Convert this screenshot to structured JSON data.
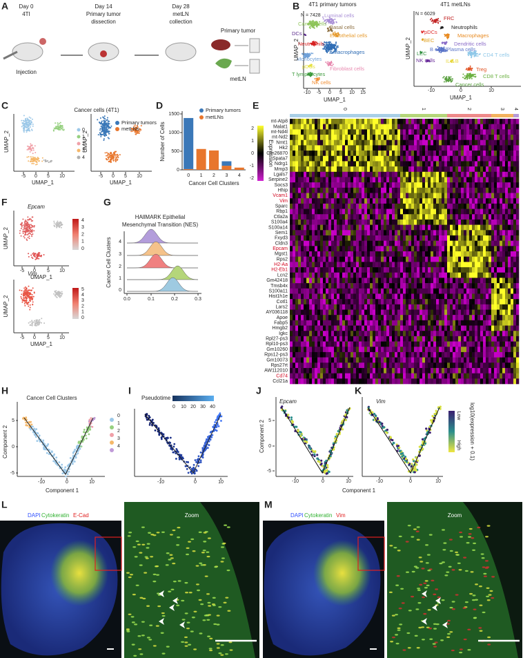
{
  "panel_a": {
    "label": "A",
    "steps": [
      {
        "day": "Day 0",
        "line1": "4TI",
        "line2": "Injection"
      },
      {
        "day": "Day 14",
        "line1": "Primary tumor",
        "line2": "dissection"
      },
      {
        "day": "Day 28",
        "line1": "metLN",
        "line2": "collection"
      }
    ],
    "tumor_label": "Primary tumor",
    "metln_label": "metLN"
  },
  "panel_b": {
    "label": "B",
    "left": {
      "title": "4T1 primary tumors",
      "n": "N = 7428",
      "x_label": "UMAP_1",
      "y_label": "UMAP_2",
      "xticks": [
        -10,
        -5,
        0,
        5,
        10,
        15
      ],
      "cells": [
        {
          "name": "Luminal cells",
          "color": "#a98fd6"
        },
        {
          "name": "Basal cells",
          "color": "#8b6d3e"
        },
        {
          "name": "Cancer cells",
          "color": "#8fc45a"
        },
        {
          "name": "Endothelial cells",
          "color": "#e69b2e"
        },
        {
          "name": "DCs",
          "color": "#5b2c8c"
        },
        {
          "name": "Neutrophils",
          "color": "#d62020"
        },
        {
          "name": "Macrophages",
          "color": "#2f6db5"
        },
        {
          "name": "Monocytes",
          "color": "#6fa0d8"
        },
        {
          "name": "pDCs",
          "color": "#e5e040"
        },
        {
          "name": "Fibroblast cells",
          "color": "#e88ab0"
        },
        {
          "name": "T lymphocytes",
          "color": "#3d9a3d"
        },
        {
          "name": "NK cells",
          "color": "#f08c30"
        }
      ]
    },
    "right": {
      "title": "4T1 metLNs",
      "n": "N = 6029",
      "x_label": "UMAP_1",
      "y_label": "UMAP_2",
      "xticks": [
        -10,
        0,
        10
      ],
      "cells": [
        {
          "name": "FRC",
          "color": "#c02020"
        },
        {
          "name": "Neutrophils",
          "color": "#222222"
        },
        {
          "name": "pDCs",
          "color": "#e03030"
        },
        {
          "name": "Macrophages",
          "color": "#e88a20"
        },
        {
          "name": "BEC",
          "color": "#e0a020"
        },
        {
          "name": "Dendritic cells",
          "color": "#8a6cc8"
        },
        {
          "name": "B cells/Plasma cells",
          "color": "#5a74c8"
        },
        {
          "name": "LEC",
          "color": "#2f8f3f"
        },
        {
          "name": "CD4 T cells",
          "color": "#8fc8e8"
        },
        {
          "name": "NK cells",
          "color": "#6a2d9a"
        },
        {
          "name": "ILC B",
          "color": "#e8d840"
        },
        {
          "name": "Treg",
          "color": "#e05020"
        },
        {
          "name": "CD8 T cells",
          "color": "#6ab040"
        },
        {
          "name": "Cancer cells",
          "color": "#5aa040"
        }
      ]
    }
  },
  "panel_c": {
    "label": "C",
    "title": "Cancer cells (4T1)",
    "x_label": "UMAP_1",
    "y_label": "UMAP_2",
    "x_label_2": "UMAP_1",
    "y_label_2": "UMAP_2",
    "xticks": [
      -5,
      0,
      5,
      10
    ],
    "xticks_2": [
      -5,
      0,
      5,
      10
    ],
    "clusters": [
      {
        "name": "0",
        "color": "#9cc8e8"
      },
      {
        "name": "1",
        "color": "#96d080"
      },
      {
        "name": "2",
        "color": "#f0a0a8"
      },
      {
        "name": "3",
        "color": "#f5b86a"
      },
      {
        "name": "4",
        "color": "#b0b0b0"
      }
    ],
    "groups": [
      {
        "name": "Primary tumors",
        "color": "#3b78b8"
      },
      {
        "name": "metLNs",
        "color": "#e8762d"
      }
    ]
  },
  "panel_d": {
    "label": "D",
    "chart_data": {
      "type": "bar",
      "y_label": "Number of Cells",
      "x_label": "Cancer Cell Clusters",
      "categories": [
        "0",
        "1",
        "2",
        "3",
        "4"
      ],
      "ylim": [
        0,
        1500
      ],
      "yticks": [
        0,
        500,
        1000,
        1500
      ],
      "stacked": true,
      "series": [
        {
          "name": "metLNs",
          "color": "#e8762d",
          "values": [
            20,
            560,
            520,
            110,
            60
          ]
        },
        {
          "name": "Primary tumors",
          "color": "#3b78b8",
          "values": [
            1370,
            0,
            0,
            120,
            0
          ]
        }
      ]
    }
  },
  "panel_e": {
    "label": "E",
    "legend_title": "Expression",
    "colorbar_ticks": [
      2,
      1,
      0,
      -1,
      -2
    ],
    "clusters": [
      {
        "name": "0",
        "color": "#a9cfe6"
      },
      {
        "name": "1",
        "color": "#b5d67a"
      },
      {
        "name": "2",
        "color": "#ee8a8a"
      },
      {
        "name": "3",
        "color": "#f3b35e"
      },
      {
        "name": "4",
        "color": "#b79ad8"
      }
    ],
    "genes": [
      {
        "name": "mt-Atp8"
      },
      {
        "name": "Malat1"
      },
      {
        "name": "mt-Nd4l"
      },
      {
        "name": "mt-Nd2"
      },
      {
        "name": "Nmt1"
      },
      {
        "name": "Hk2"
      },
      {
        "name": "Gm26870"
      },
      {
        "name": "Spata7"
      },
      {
        "name": "Ndrg1"
      },
      {
        "name": "Mmp3"
      },
      {
        "name": "Lgals7"
      },
      {
        "name": "Serpine2"
      },
      {
        "name": "Socs3"
      },
      {
        "name": "Hhip"
      },
      {
        "name": "Vcam1",
        "color": "#d0021b"
      },
      {
        "name": "Vim",
        "color": "#d0021b"
      },
      {
        "name": "Sparc"
      },
      {
        "name": "Rbp1"
      },
      {
        "name": "Ctla2a"
      },
      {
        "name": "S100a4"
      },
      {
        "name": "S100a14"
      },
      {
        "name": "Sem1"
      },
      {
        "name": "Fxyd3"
      },
      {
        "name": "Cldn3"
      },
      {
        "name": "Epcam",
        "color": "#d0021b"
      },
      {
        "name": "Mgst1"
      },
      {
        "name": "Rps2"
      },
      {
        "name": "H2-Aa",
        "color": "#d0021b"
      },
      {
        "name": "H2-Eb1",
        "color": "#d0021b"
      },
      {
        "name": "Lcn2"
      },
      {
        "name": "Gm42418"
      },
      {
        "name": "Tmsb4x"
      },
      {
        "name": "S100a11"
      },
      {
        "name": "Hist1h1e"
      },
      {
        "name": "Cotl1"
      },
      {
        "name": "Lars2"
      },
      {
        "name": "AY036118"
      },
      {
        "name": "Apoe"
      },
      {
        "name": "Fabp5"
      },
      {
        "name": "Hmgb2"
      },
      {
        "name": "Igkc"
      },
      {
        "name": "Rpl27-ps3"
      },
      {
        "name": "Rpl10-ps3"
      },
      {
        "name": "Gm10260"
      },
      {
        "name": "Rps12-ps3"
      },
      {
        "name": "Gm10073"
      },
      {
        "name": "Rps27rt"
      },
      {
        "name": "AW112010"
      },
      {
        "name": "Cd74",
        "color": "#d0021b"
      },
      {
        "name": "Ccl21a"
      }
    ]
  },
  "panel_f": {
    "label": "F",
    "plots": [
      {
        "gene": "Epcam",
        "x_label": "UMAP_1",
        "y_label": "UMAP_2",
        "xticks": [
          -5,
          0,
          5,
          10
        ],
        "colorbar_ticks": [
          4,
          3,
          2,
          1,
          0
        ]
      },
      {
        "gene": "Vim",
        "x_label": "UMAP_1",
        "y_label": "UMAP_2",
        "xticks": [
          -5,
          0,
          5,
          10
        ],
        "colorbar_ticks": [
          5,
          4,
          3,
          2,
          1,
          0
        ]
      }
    ]
  },
  "panel_g": {
    "label": "G",
    "title_line1": "HAllMARK Epithelial",
    "title_line2": "Mesenchymal Transition (NES)",
    "y_label": "Cancer Cell Clusters",
    "yticks": [
      4,
      3,
      2,
      1,
      0
    ],
    "xticks": [
      {
        "value": 0,
        "label": "0.0"
      },
      0.1,
      0.2,
      0.3
    ]
  },
  "panel_h": {
    "label": "H",
    "title": "Cancer Cell Clusters",
    "x_label": "Component 1",
    "y_label": "Component 2",
    "xticks": [
      -10,
      0,
      10
    ],
    "yticks": [
      5,
      0,
      -5
    ],
    "clusters": [
      {
        "name": "0",
        "color": "#9cc8e8"
      },
      {
        "name": "1",
        "color": "#96d080"
      },
      {
        "name": "2",
        "color": "#f0a0a8"
      },
      {
        "name": "3",
        "color": "#f5b86a"
      },
      {
        "name": "4",
        "color": "#c09bd8"
      }
    ]
  },
  "panel_i": {
    "label": "I",
    "colorbar_title": "Pseudotime",
    "colorbar_ticks": [
      0,
      10,
      20,
      30,
      40
    ],
    "xticks": [
      -10,
      0,
      10
    ]
  },
  "panel_j": {
    "label": "J",
    "gene": "Epcam",
    "y_label": "Component 2",
    "yticks": [
      5,
      0,
      -5
    ],
    "xticks": [
      -10,
      0,
      10
    ]
  },
  "panel_k": {
    "label": "K",
    "gene": "Vim",
    "xticks": [
      -10,
      0,
      10
    ],
    "x_label": "Component 1",
    "low": "Low",
    "high": "High",
    "colorbar_title": "log10(expression + 0.1)"
  },
  "panel_l": {
    "label": "L",
    "stain_1": "DAPI",
    "stain_2": "Cytokeratin",
    "stain_3": "E-Cad",
    "zoom": "Zoom"
  },
  "panel_m": {
    "label": "M",
    "stain_1": "DAPI",
    "stain_2": "Cytokeratin",
    "stain_3": "Vim",
    "zoom": "Zoom"
  }
}
